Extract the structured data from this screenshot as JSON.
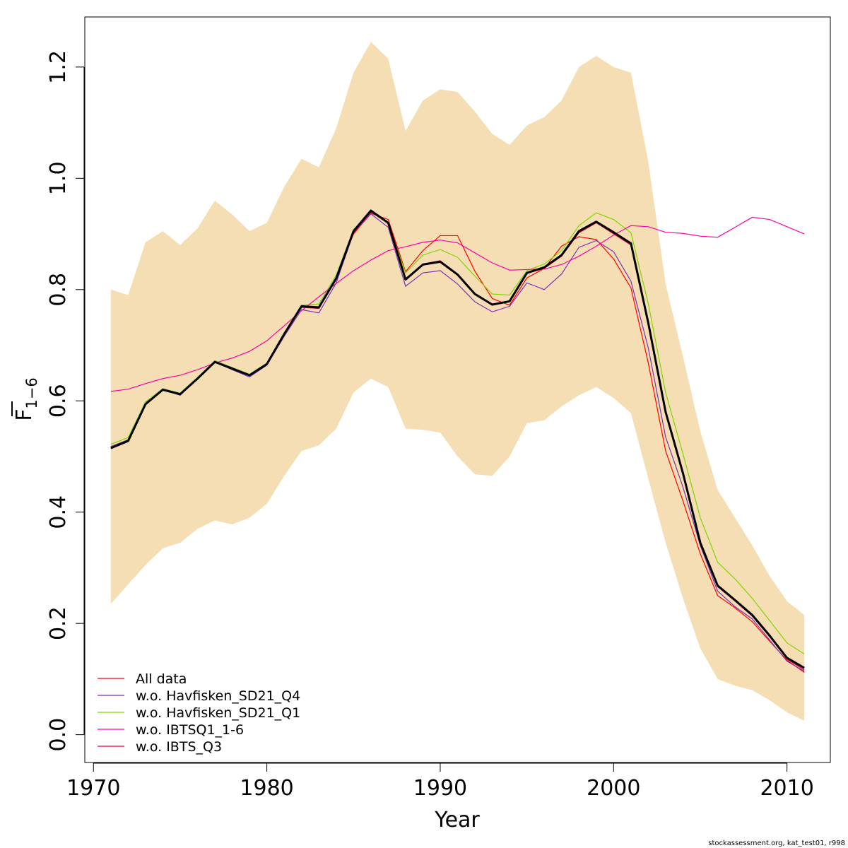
{
  "chart_data": {
    "type": "line",
    "title": "",
    "xlabel": "Year",
    "ylabel_main": "F",
    "ylabel_sub": "1−6",
    "xlim": [
      1969.5,
      2012.5
    ],
    "ylim": [
      -0.05,
      1.29
    ],
    "xticks": [
      "1970",
      "1980",
      "1990",
      "2000",
      "2010"
    ],
    "yticks": [
      "0.0",
      "0.2",
      "0.4",
      "0.6",
      "0.8",
      "1.0",
      "1.2"
    ],
    "grid": false,
    "legend_position": "bottom-left",
    "x": [
      1971,
      1972,
      1973,
      1974,
      1975,
      1976,
      1977,
      1978,
      1979,
      1980,
      1981,
      1982,
      1983,
      1984,
      1985,
      1986,
      1987,
      1988,
      1989,
      1990,
      1991,
      1992,
      1993,
      1994,
      1995,
      1996,
      1997,
      1998,
      1999,
      2000,
      2001,
      2002,
      2003,
      2004,
      2005,
      2006,
      2007,
      2008,
      2009,
      2010,
      2011
    ],
    "confidence_band": {
      "color": "#f5deb3",
      "upper": [
        0.8,
        0.79,
        0.885,
        0.905,
        0.88,
        0.91,
        0.96,
        0.935,
        0.905,
        0.92,
        0.985,
        1.035,
        1.02,
        1.09,
        1.19,
        1.245,
        1.215,
        1.085,
        1.14,
        1.16,
        1.155,
        1.12,
        1.08,
        1.06,
        1.095,
        1.11,
        1.14,
        1.2,
        1.22,
        1.2,
        1.19,
        1.03,
        0.81,
        0.68,
        0.545,
        0.44,
        0.39,
        0.34,
        0.285,
        0.24,
        0.215
      ],
      "lower": [
        0.235,
        0.27,
        0.305,
        0.335,
        0.345,
        0.37,
        0.385,
        0.378,
        0.39,
        0.415,
        0.465,
        0.51,
        0.52,
        0.55,
        0.615,
        0.64,
        0.625,
        0.55,
        0.548,
        0.543,
        0.5,
        0.468,
        0.465,
        0.5,
        0.56,
        0.565,
        0.59,
        0.61,
        0.625,
        0.605,
        0.578,
        0.46,
        0.345,
        0.245,
        0.155,
        0.1,
        0.088,
        0.08,
        0.062,
        0.04,
        0.025
      ]
    },
    "main_estimate": {
      "color": "#000000",
      "values": [
        0.515,
        0.528,
        0.594,
        0.62,
        0.612,
        0.64,
        0.67,
        0.658,
        0.646,
        0.666,
        0.72,
        0.77,
        0.768,
        0.82,
        0.905,
        0.942,
        0.92,
        0.818,
        0.845,
        0.85,
        0.827,
        0.792,
        0.773,
        0.779,
        0.83,
        0.84,
        0.862,
        0.905,
        0.922,
        0.903,
        0.883,
        0.74,
        0.58,
        0.47,
        0.345,
        0.268,
        0.242,
        0.215,
        0.178,
        0.138,
        0.12
      ]
    },
    "series": [
      {
        "name": "All data",
        "color": "#ff0000",
        "values": [
          0.516,
          0.528,
          0.596,
          0.622,
          0.612,
          0.64,
          0.672,
          0.66,
          0.646,
          0.668,
          0.722,
          0.77,
          0.768,
          0.822,
          0.9,
          0.937,
          0.926,
          0.832,
          0.87,
          0.897,
          0.897,
          0.833,
          0.784,
          0.772,
          0.821,
          0.838,
          0.878,
          0.895,
          0.89,
          0.855,
          0.803,
          0.668,
          0.51,
          0.42,
          0.325,
          0.25,
          0.228,
          0.203,
          0.168,
          0.134,
          0.112
        ]
      },
      {
        "name": "w.o. Havfisken_SD21_Q4",
        "color": "#7b2fbe",
        "values": [
          0.518,
          0.53,
          0.595,
          0.62,
          0.61,
          0.64,
          0.67,
          0.656,
          0.643,
          0.664,
          0.716,
          0.764,
          0.758,
          0.812,
          0.902,
          0.936,
          0.912,
          0.806,
          0.83,
          0.834,
          0.81,
          0.778,
          0.76,
          0.77,
          0.812,
          0.8,
          0.828,
          0.876,
          0.888,
          0.868,
          0.815,
          0.695,
          0.535,
          0.445,
          0.34,
          0.258,
          0.23,
          0.208,
          0.17,
          0.132,
          0.114
        ]
      },
      {
        "name": "w.o. Havfisken_SD21_Q1",
        "color": "#7fd500",
        "values": [
          0.522,
          0.534,
          0.598,
          0.622,
          0.614,
          0.642,
          0.672,
          0.66,
          0.648,
          0.668,
          0.722,
          0.772,
          0.774,
          0.826,
          0.908,
          0.94,
          0.918,
          0.83,
          0.862,
          0.872,
          0.858,
          0.824,
          0.792,
          0.79,
          0.834,
          0.846,
          0.87,
          0.915,
          0.938,
          0.926,
          0.902,
          0.775,
          0.615,
          0.505,
          0.39,
          0.31,
          0.28,
          0.245,
          0.205,
          0.165,
          0.145
        ]
      },
      {
        "name": "w.o. IBTSQ1_1-6",
        "color": "#ff00aa",
        "values": [
          0.617,
          0.621,
          0.631,
          0.64,
          0.646,
          0.656,
          0.668,
          0.677,
          0.689,
          0.708,
          0.735,
          0.762,
          0.787,
          0.811,
          0.834,
          0.853,
          0.87,
          0.877,
          0.885,
          0.889,
          0.884,
          0.866,
          0.848,
          0.835,
          0.836,
          0.837,
          0.845,
          0.86,
          0.878,
          0.898,
          0.915,
          0.913,
          0.903,
          0.901,
          0.896,
          0.894,
          0.912,
          0.93,
          0.926,
          0.913,
          0.9
        ]
      },
      {
        "name": "w.o. IBTS_Q3",
        "color": "#e8003a",
        "values": [
          0.515,
          0.527,
          0.594,
          0.62,
          0.611,
          0.64,
          0.67,
          0.657,
          0.645,
          0.666,
          0.72,
          0.768,
          0.766,
          0.818,
          0.902,
          0.939,
          0.92,
          0.82,
          0.846,
          0.852,
          0.828,
          0.793,
          0.772,
          0.778,
          0.829,
          0.838,
          0.86,
          0.902,
          0.92,
          0.9,
          0.88,
          0.738,
          0.578,
          0.468,
          0.343,
          0.266,
          0.24,
          0.213,
          0.176,
          0.136,
          0.116
        ]
      }
    ],
    "credit": "stockassessment.org, kat_test01, r998"
  }
}
